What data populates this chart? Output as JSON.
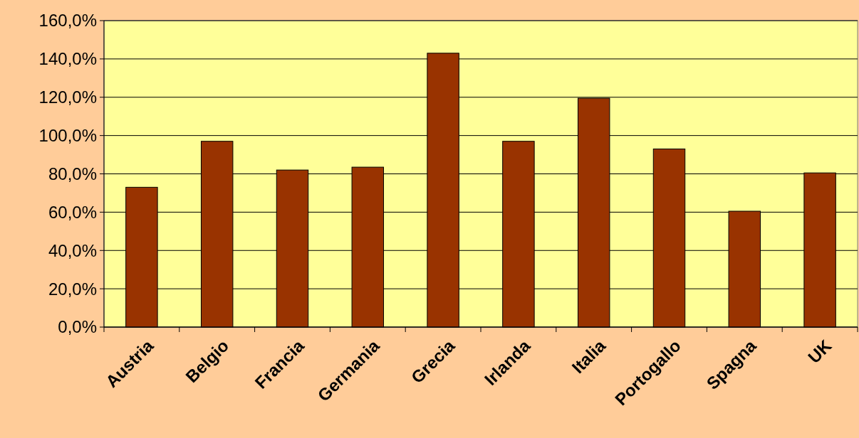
{
  "chart_data": {
    "type": "bar",
    "categories": [
      "Austria",
      "Belgio",
      "Francia",
      "Germania",
      "Grecia",
      "Irlanda",
      "Italia",
      "Portogallo",
      "Spagna",
      "UK"
    ],
    "values": [
      73,
      97,
      82,
      83.5,
      143,
      97,
      119.5,
      93,
      60.5,
      80.5
    ],
    "color": "#993300",
    "ylim": [
      0,
      160
    ],
    "yticks": [
      {
        "value": 0,
        "label": "0,0%"
      },
      {
        "value": 20,
        "label": "20,0%"
      },
      {
        "value": 40,
        "label": "40,0%"
      },
      {
        "value": 60,
        "label": "60,0%"
      },
      {
        "value": 80,
        "label": "80,0%"
      },
      {
        "value": 100,
        "label": "100,0%"
      },
      {
        "value": 120,
        "label": "120,0%"
      },
      {
        "value": 140,
        "label": "140,0%"
      },
      {
        "value": 160,
        "label": "160,0%"
      }
    ],
    "grid": "y"
  }
}
